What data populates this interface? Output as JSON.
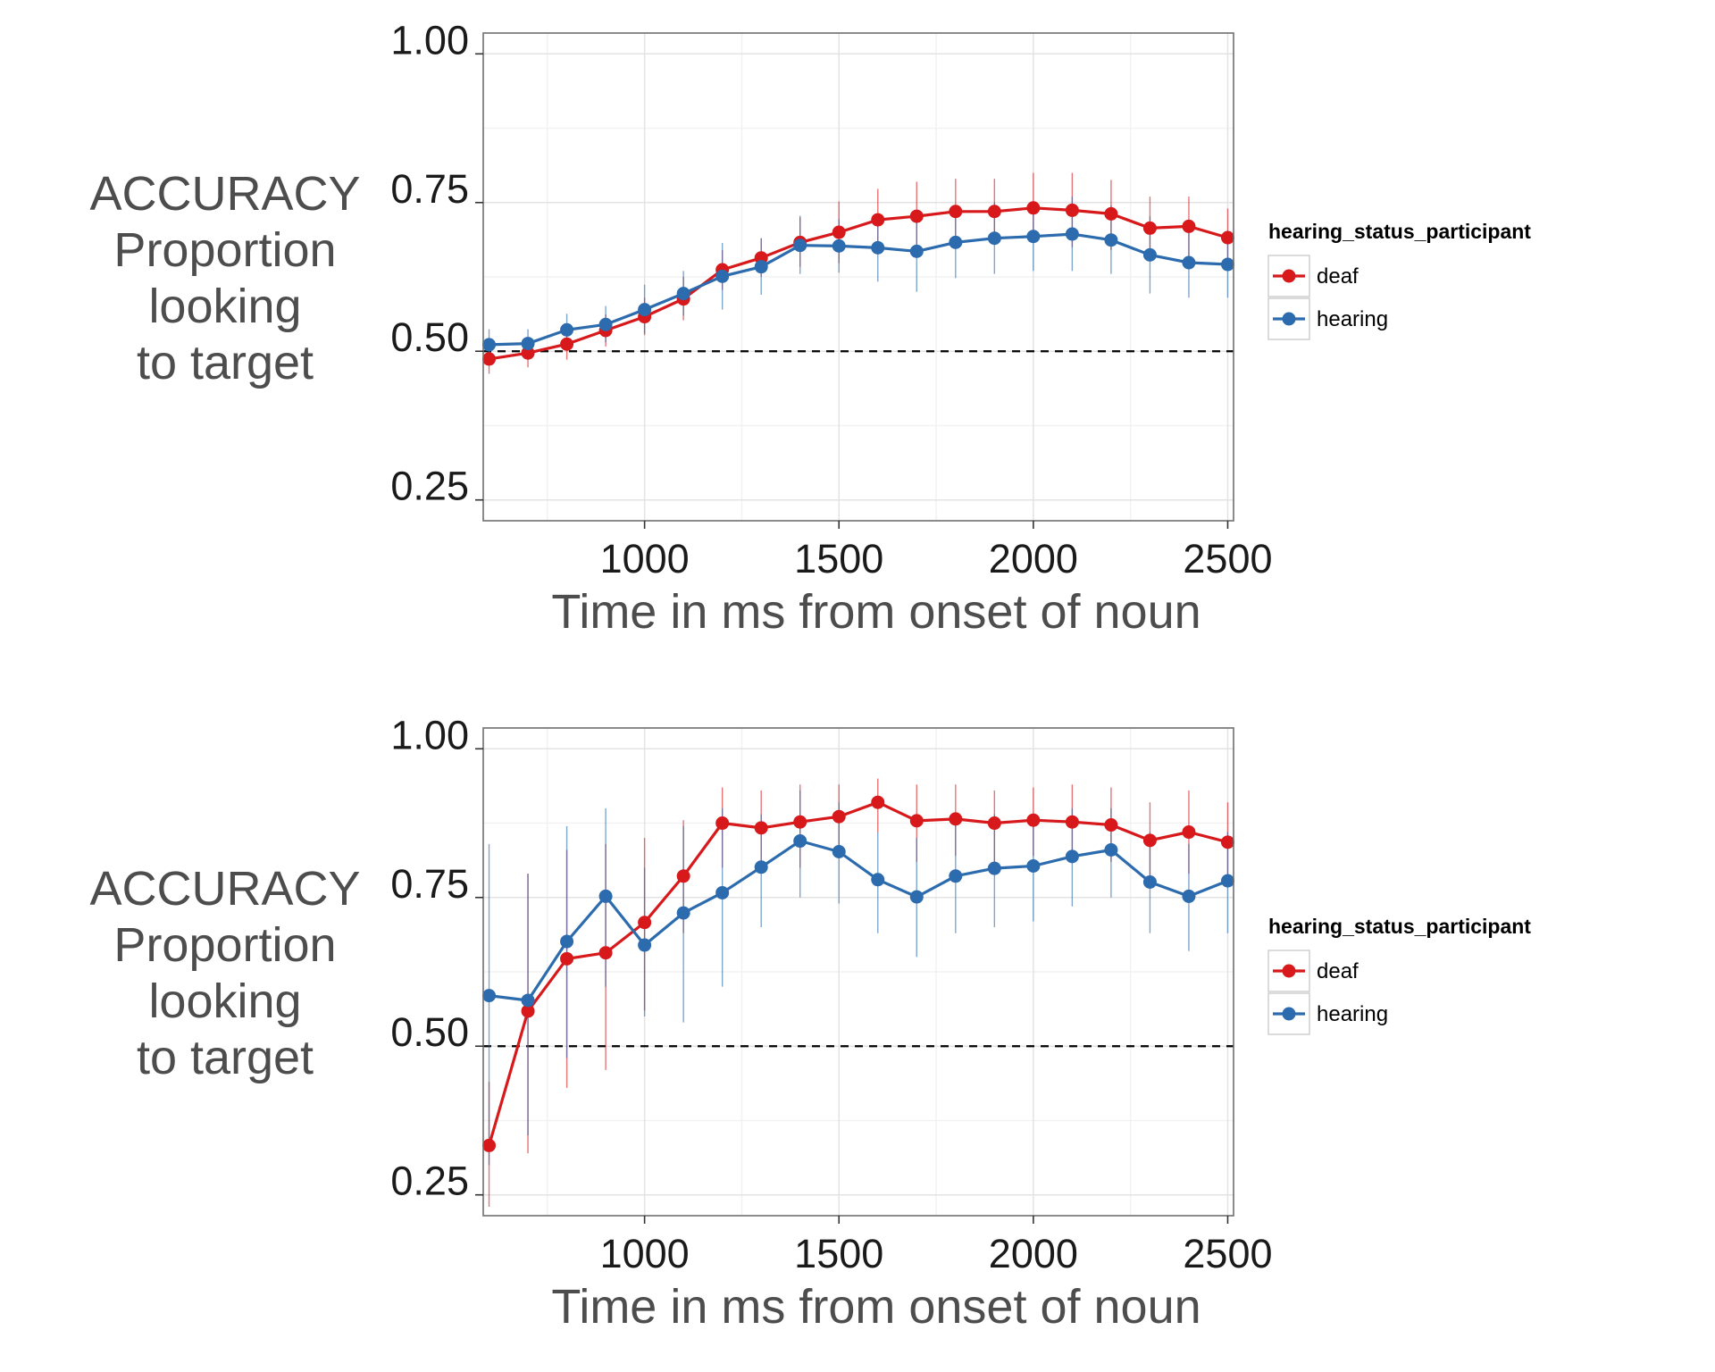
{
  "chart_data": [
    {
      "type": "line",
      "ylabel": "ACCURACY\nProportion\nlooking\nto target",
      "xlabel": "Time in ms from onset of noun",
      "x_ticks": [
        1000,
        1500,
        2000,
        2500
      ],
      "x_tick_labels": [
        "1000",
        "1500",
        "2000",
        "2500"
      ],
      "y_ticks": [
        0.25,
        0.5,
        0.75,
        1.0
      ],
      "y_tick_labels": [
        "0.25",
        "0.50",
        "0.75",
        "1.00"
      ],
      "xlim": [
        585,
        2515
      ],
      "ylim": [
        0.215,
        1.035
      ],
      "reference_line": 0.5,
      "grid": true,
      "legend": {
        "title": "hearing_status_participant",
        "position": "right"
      },
      "x": [
        600,
        700,
        800,
        900,
        1000,
        1100,
        1200,
        1300,
        1400,
        1500,
        1600,
        1700,
        1800,
        1900,
        2000,
        2100,
        2200,
        2300,
        2400,
        2500
      ],
      "series": [
        {
          "name": "deaf",
          "color": "#d7191c",
          "values": [
            0.487,
            0.497,
            0.512,
            0.535,
            0.558,
            0.588,
            0.637,
            0.657,
            0.683,
            0.7,
            0.721,
            0.727,
            0.735,
            0.735,
            0.741,
            0.737,
            0.731,
            0.707,
            0.71,
            0.691
          ],
          "lower": [
            0.462,
            0.473,
            0.486,
            0.508,
            0.527,
            0.552,
            0.603,
            0.625,
            0.642,
            0.648,
            0.668,
            0.668,
            0.68,
            0.68,
            0.683,
            0.675,
            0.67,
            0.651,
            0.65,
            0.638
          ],
          "upper": [
            0.512,
            0.522,
            0.538,
            0.562,
            0.59,
            0.625,
            0.67,
            0.69,
            0.725,
            0.752,
            0.773,
            0.785,
            0.79,
            0.79,
            0.8,
            0.8,
            0.788,
            0.76,
            0.76,
            0.74
          ]
        },
        {
          "name": "hearing",
          "color": "#2c6bad",
          "values": [
            0.511,
            0.513,
            0.536,
            0.545,
            0.57,
            0.597,
            0.626,
            0.642,
            0.678,
            0.677,
            0.674,
            0.668,
            0.683,
            0.69,
            0.693,
            0.697,
            0.687,
            0.662,
            0.649,
            0.646
          ],
          "lower": [
            0.485,
            0.49,
            0.51,
            0.515,
            0.53,
            0.56,
            0.57,
            0.595,
            0.63,
            0.632,
            0.617,
            0.6,
            0.623,
            0.63,
            0.635,
            0.635,
            0.63,
            0.597,
            0.59,
            0.59
          ],
          "upper": [
            0.537,
            0.537,
            0.563,
            0.576,
            0.612,
            0.635,
            0.682,
            0.69,
            0.728,
            0.722,
            0.73,
            0.735,
            0.742,
            0.75,
            0.752,
            0.76,
            0.745,
            0.727,
            0.708,
            0.703
          ]
        }
      ]
    },
    {
      "type": "line",
      "ylabel": "ACCURACY\nProportion\nlooking\nto target",
      "xlabel": "Time in ms from onset of noun",
      "x_ticks": [
        1000,
        1500,
        2000,
        2500
      ],
      "x_tick_labels": [
        "1000",
        "1500",
        "2000",
        "2500"
      ],
      "y_ticks": [
        0.25,
        0.5,
        0.75,
        1.0
      ],
      "y_tick_labels": [
        "0.25",
        "0.50",
        "0.75",
        "1.00"
      ],
      "xlim": [
        585,
        2515
      ],
      "ylim": [
        0.215,
        1.035
      ],
      "reference_line": 0.5,
      "grid": true,
      "legend": {
        "title": "hearing_status_participant",
        "position": "right"
      },
      "x": [
        600,
        700,
        800,
        900,
        1000,
        1100,
        1200,
        1300,
        1400,
        1500,
        1600,
        1700,
        1800,
        1900,
        2000,
        2100,
        2200,
        2300,
        2400,
        2500
      ],
      "series": [
        {
          "name": "deaf",
          "color": "#d7191c",
          "values": [
            0.333,
            0.559,
            0.647,
            0.657,
            0.708,
            0.786,
            0.875,
            0.867,
            0.877,
            0.886,
            0.91,
            0.879,
            0.882,
            0.875,
            0.88,
            0.877,
            0.872,
            0.846,
            0.86,
            0.843
          ],
          "lower": [
            0.23,
            0.32,
            0.43,
            0.46,
            0.56,
            0.69,
            0.8,
            0.8,
            0.8,
            0.82,
            0.86,
            0.81,
            0.82,
            0.81,
            0.82,
            0.81,
            0.81,
            0.78,
            0.79,
            0.77
          ],
          "upper": [
            0.44,
            0.79,
            0.83,
            0.84,
            0.85,
            0.88,
            0.935,
            0.93,
            0.94,
            0.94,
            0.95,
            0.94,
            0.94,
            0.93,
            0.935,
            0.94,
            0.935,
            0.91,
            0.93,
            0.91
          ]
        },
        {
          "name": "hearing",
          "color": "#2c6bad",
          "values": [
            0.585,
            0.577,
            0.676,
            0.752,
            0.67,
            0.724,
            0.758,
            0.801,
            0.845,
            0.827,
            0.78,
            0.751,
            0.786,
            0.799,
            0.803,
            0.819,
            0.83,
            0.776,
            0.752,
            0.778
          ],
          "lower": [
            0.3,
            0.35,
            0.48,
            0.6,
            0.55,
            0.54,
            0.6,
            0.7,
            0.75,
            0.74,
            0.69,
            0.65,
            0.69,
            0.7,
            0.71,
            0.735,
            0.75,
            0.69,
            0.66,
            0.69
          ],
          "upper": [
            0.84,
            0.79,
            0.87,
            0.9,
            0.8,
            0.87,
            0.9,
            0.89,
            0.93,
            0.91,
            0.86,
            0.85,
            0.88,
            0.89,
            0.89,
            0.9,
            0.9,
            0.86,
            0.84,
            0.86
          ]
        }
      ]
    }
  ]
}
